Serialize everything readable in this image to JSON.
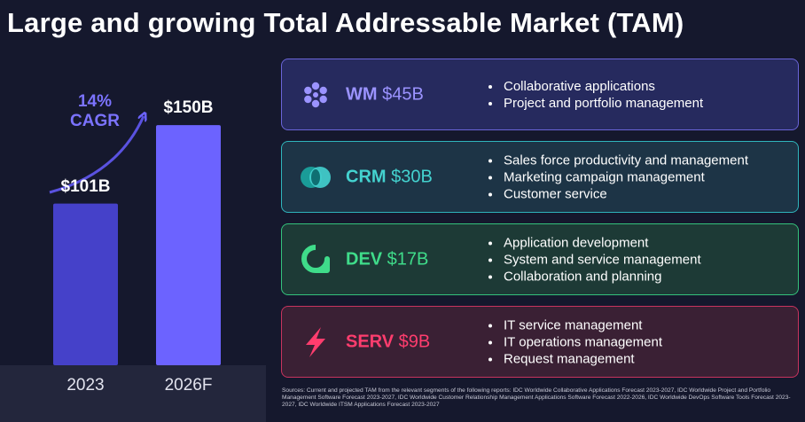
{
  "title": "Large and growing Total Addressable Market (TAM)",
  "chart_data": {
    "type": "bar",
    "categories": [
      "2023",
      "2026F"
    ],
    "values": [
      101,
      150
    ],
    "value_labels": [
      "$101B",
      "$150B"
    ],
    "annotation": "14% CAGR",
    "annotation_lines": [
      "14%",
      "CAGR"
    ],
    "ylim": [
      0,
      180
    ],
    "colors": [
      "#4541c9",
      "#6c63ff"
    ],
    "annotation_color": "#7b73ff"
  },
  "segments": [
    {
      "code": "WM",
      "amount": "$45B",
      "icon": "flower-icon",
      "accent": "#9b93ff",
      "bg": "#262a5e",
      "border": "#6a64d8",
      "bullets": [
        "Collaborative applications",
        "Project and portfolio management"
      ]
    },
    {
      "code": "CRM",
      "amount": "$30B",
      "icon": "crm-overlap-icon",
      "accent": "#44d2cf",
      "bg": "#1d3446",
      "border": "#2fb5bc",
      "bullets": [
        "Sales force productivity and management",
        "Marketing campaign management",
        "Customer service"
      ]
    },
    {
      "code": "DEV",
      "amount": "$17B",
      "icon": "dev-loop-icon",
      "accent": "#3fdc8a",
      "bg": "#1d3a36",
      "border": "#34c27c",
      "bullets": [
        "Application development",
        "System and service management",
        "Collaboration and planning"
      ]
    },
    {
      "code": "SERV",
      "amount": "$9B",
      "icon": "lightning-icon",
      "accent": "#ff3d6e",
      "bg": "#3a2034",
      "border": "#c8335e",
      "bullets": [
        "IT service management",
        "IT operations management",
        "Request management"
      ]
    }
  ],
  "sources": "Sources: Current and projected TAM from the relevant segments of the following reports: IDC Worldwide Collaborative Applications Forecast 2023-2027, IDC Worldwide Project and Portfolio Management Software Forecast 2023-2027, IDC Worldwide Customer Relationship Management Applications Software Forecast 2022-2026, IDC Worldwide DevOps Software Tools Forecast 2023-2027, IDC Worldwide ITSM Applications Forecast 2023-2027"
}
